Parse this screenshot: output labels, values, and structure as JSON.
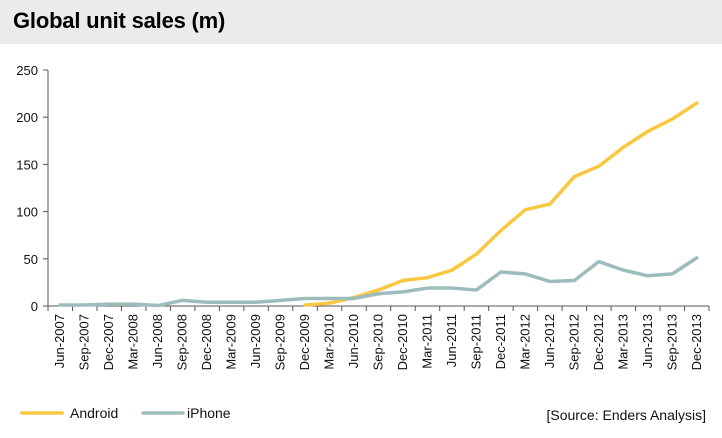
{
  "chart_data": {
    "type": "line",
    "title": "Global unit sales (m)",
    "xlabel": "",
    "ylabel": "",
    "ylim": [
      0,
      250
    ],
    "yticks": [
      0,
      50,
      100,
      150,
      200,
      250
    ],
    "categories": [
      "Jun-2007",
      "Sep-2007",
      "Dec-2007",
      "Mar-2008",
      "Jun-2008",
      "Sep-2008",
      "Dec-2008",
      "Mar-2009",
      "Jun-2009",
      "Sep-2009",
      "Dec-2009",
      "Mar-2010",
      "Jun-2010",
      "Sep-2010",
      "Dec-2010",
      "Mar-2011",
      "Jun-2011",
      "Sep-2011",
      "Dec-2011",
      "Mar-2012",
      "Jun-2012",
      "Sep-2012",
      "Dec-2012",
      "Mar-2013",
      "Jun-2013",
      "Sep-2013",
      "Dec-2013"
    ],
    "series": [
      {
        "name": "Android",
        "color": "#f9c740",
        "values": [
          null,
          null,
          null,
          null,
          null,
          null,
          null,
          null,
          null,
          null,
          1,
          3,
          9,
          17,
          27,
          30,
          38,
          55,
          80,
          102,
          108,
          137,
          148,
          168,
          185,
          198,
          215
        ]
      },
      {
        "name": "iPhone",
        "color": "#9dbdbc",
        "values": [
          1,
          1,
          2,
          2,
          0.5,
          6,
          4,
          4,
          4,
          6,
          8,
          8,
          8,
          13,
          15,
          19,
          19,
          17,
          36,
          34,
          26,
          27,
          47,
          38,
          32,
          34,
          51
        ]
      }
    ],
    "grid": false,
    "legend": "bottom-left",
    "source": "[Source: Enders Analysis]"
  }
}
